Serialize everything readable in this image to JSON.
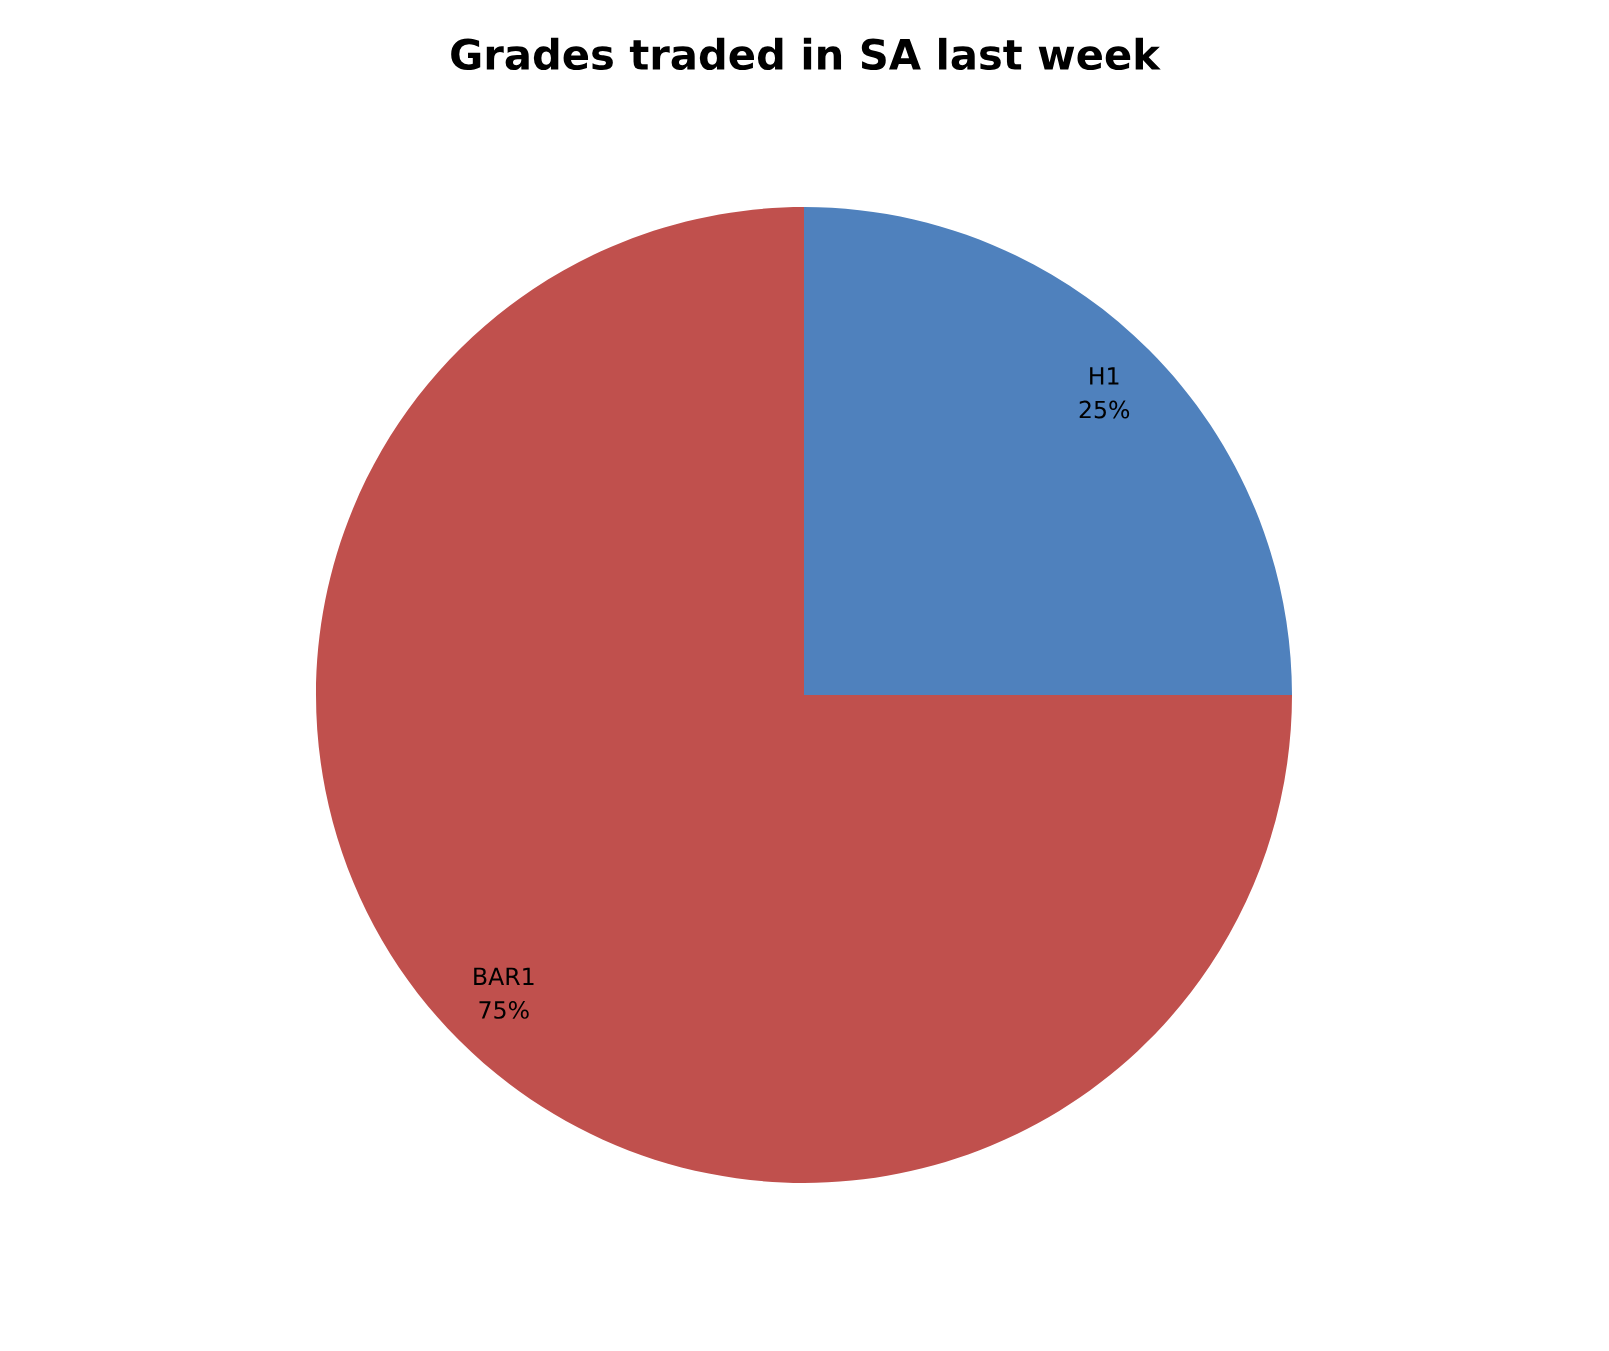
{
  "chart_data": {
    "type": "pie",
    "title": "Grades traded in SA last week",
    "categories": [
      "H1",
      "BAR1"
    ],
    "values": [
      25,
      75
    ],
    "value_labels": [
      "25%",
      "75%"
    ],
    "colors": [
      "#4f81bd",
      "#c0504d"
    ],
    "legend": false
  }
}
